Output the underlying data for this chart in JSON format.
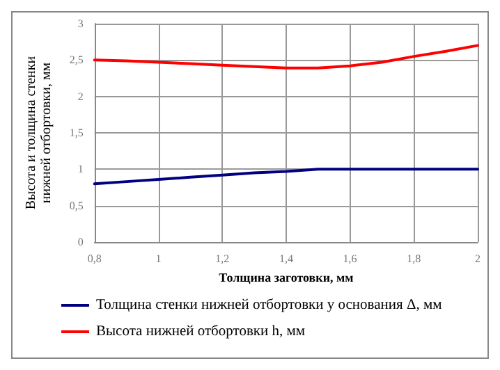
{
  "chart_data": {
    "type": "line",
    "xlabel": "Толщина заготовки, мм",
    "ylabel": "Высота и толщина стенки\nнижней отбортовки, мм",
    "x": [
      0.8,
      0.9,
      1.0,
      1.1,
      1.2,
      1.3,
      1.4,
      1.5,
      1.6,
      1.7,
      1.8,
      1.9,
      2.0
    ],
    "series": [
      {
        "name": "Толщина стенки нижней отбортовки у основания Δ, мм",
        "color": "#000080",
        "values": [
          0.8,
          0.83,
          0.86,
          0.89,
          0.92,
          0.95,
          0.97,
          1.0,
          1.0,
          1.0,
          1.0,
          1.0,
          1.0
        ]
      },
      {
        "name": "Высота нижней отбортовки h, мм",
        "color": "#ff0000",
        "values": [
          2.5,
          2.49,
          2.47,
          2.45,
          2.43,
          2.41,
          2.39,
          2.39,
          2.42,
          2.47,
          2.55,
          2.62,
          2.7
        ]
      }
    ],
    "xlim": [
      0.8,
      2
    ],
    "xticks": [
      {
        "value": 0.8,
        "label": "0,8"
      },
      1,
      {
        "value": 1.2,
        "label": "1,2"
      },
      {
        "value": 1.4,
        "label": "1,4"
      },
      {
        "value": 1.6,
        "label": "1,6"
      },
      {
        "value": 1.8,
        "label": "1,8"
      },
      2
    ],
    "ylim": [
      0,
      3
    ],
    "yticks": [
      0,
      {
        "value": 0.5,
        "label": "0,5"
      },
      1,
      {
        "value": 1.5,
        "label": "1,5"
      },
      2,
      {
        "value": 2.5,
        "label": "2,5"
      },
      3
    ],
    "grid": true,
    "legend": "bottom",
    "marker": "none",
    "line_style": "solid"
  }
}
